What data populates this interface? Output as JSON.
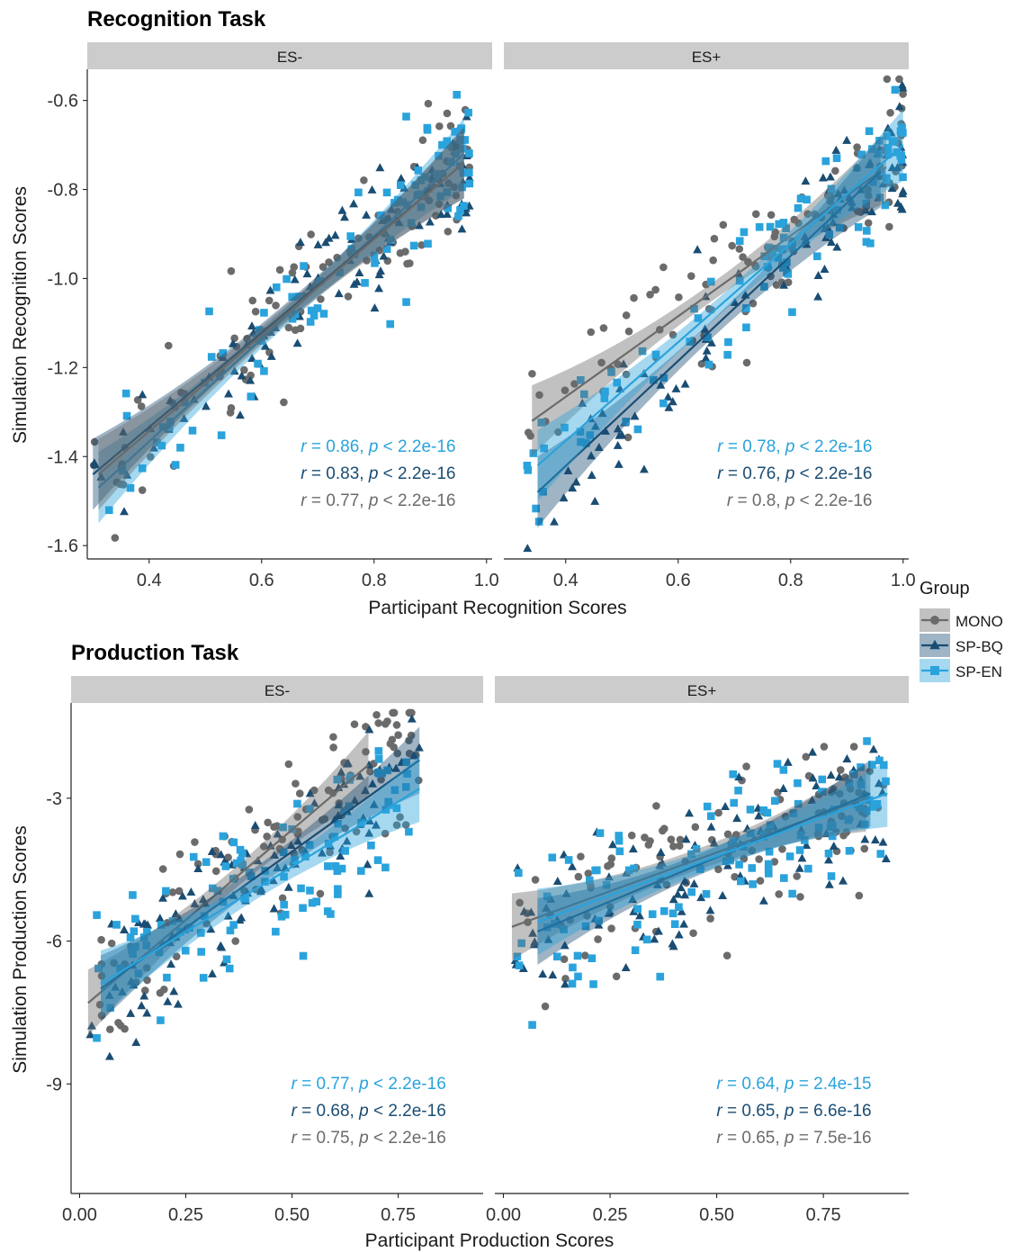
{
  "colors": {
    "MONO": "#6b6b6b",
    "SP-BQ": "#1a4d73",
    "SP-EN": "#2aa3dc",
    "strip": "#cccccc"
  },
  "legend": {
    "title": "Group",
    "entries": [
      {
        "group": "MONO",
        "label": "MONO",
        "shape": "circle"
      },
      {
        "group": "SP-BQ",
        "label": "SP-BQ",
        "shape": "triangle"
      },
      {
        "group": "SP-EN",
        "label": "SP-EN",
        "shape": "square"
      }
    ]
  },
  "chart_data": [
    {
      "type": "scatter",
      "title": "Recognition Task",
      "xlabel": "Participant Recognition Scores",
      "ylabel": "Simulation Recognition Scores",
      "xlim": [
        0.29,
        1.01
      ],
      "ylim": [
        -1.63,
        -0.53
      ],
      "xticks": [
        0.4,
        0.6,
        0.8,
        1.0
      ],
      "xtick_labels": [
        "0.4",
        "0.6",
        "0.8",
        "1.0"
      ],
      "yticks": [
        -1.6,
        -1.4,
        -1.2,
        -1.0,
        -0.8,
        -0.6
      ],
      "ytick_labels": [
        "-1.6",
        "-1.4",
        "-1.2",
        "-1.0",
        "-0.8",
        "-0.6"
      ],
      "grid": false,
      "facets": [
        {
          "label": "ES-",
          "xrange": [
            0.3,
            0.97
          ],
          "points_per_group": 100,
          "fits": [
            {
              "group": "SP-EN",
              "x": [
                0.31,
                0.96
              ],
              "y": [
                -1.47,
                -0.72
              ]
            },
            {
              "group": "SP-BQ",
              "x": [
                0.3,
                0.96
              ],
              "y": [
                -1.44,
                -0.74
              ]
            },
            {
              "group": "MONO",
              "x": [
                0.31,
                0.96
              ],
              "y": [
                -1.44,
                -0.74
              ]
            }
          ],
          "annotations": [
            {
              "group": "SP-EN",
              "r": "0.86",
              "p": "< 2.2e-16"
            },
            {
              "group": "SP-BQ",
              "r": "0.83",
              "p": "< 2.2e-16"
            },
            {
              "group": "MONO",
              "r": "0.77",
              "p": "< 2.2e-16"
            }
          ]
        },
        {
          "label": "ES+",
          "xrange": [
            0.33,
            1.0
          ],
          "points_per_group": 100,
          "fits": [
            {
              "group": "MONO",
              "x": [
                0.34,
                0.97
              ],
              "y": [
                -1.32,
                -0.75
              ]
            },
            {
              "group": "SP-BQ",
              "x": [
                0.35,
                0.96
              ],
              "y": [
                -1.48,
                -0.76
              ]
            },
            {
              "group": "SP-EN",
              "x": [
                0.35,
                1.0
              ],
              "y": [
                -1.42,
                -0.7
              ]
            }
          ],
          "annotations": [
            {
              "group": "SP-EN",
              "r": "0.78",
              "p": "< 2.2e-16"
            },
            {
              "group": "SP-BQ",
              "r": "0.76",
              "p": "< 2.2e-16"
            },
            {
              "group": "MONO",
              "r": "0.8",
              "p": "< 2.2e-16"
            }
          ]
        }
      ]
    },
    {
      "type": "scatter",
      "title": "Production Task",
      "xlabel": "Participant Production Scores",
      "ylabel": "Simulation Production Scores",
      "xlim": [
        -0.02,
        0.95
      ],
      "ylim": [
        -11.3,
        -1.0
      ],
      "xticks": [
        0.0,
        0.25,
        0.5,
        0.75
      ],
      "xtick_labels": [
        "0.00",
        "0.25",
        "0.50",
        "0.75"
      ],
      "yticks": [
        -9,
        -6,
        -3
      ],
      "ytick_labels": [
        "-9",
        "-6",
        "-3"
      ],
      "grid": false,
      "facets": [
        {
          "label": "ES-",
          "xrange": [
            0.02,
            0.8
          ],
          "points_per_group": 110,
          "fits": [
            {
              "group": "MONO",
              "x": [
                0.02,
                0.68
              ],
              "y": [
                -7.3,
                -2.3
              ]
            },
            {
              "group": "SP-BQ",
              "x": [
                0.05,
                0.8
              ],
              "y": [
                -7.0,
                -2.2
              ]
            },
            {
              "group": "SP-EN",
              "x": [
                0.05,
                0.8
              ],
              "y": [
                -6.9,
                -2.8
              ]
            }
          ],
          "annotations": [
            {
              "group": "SP-EN",
              "r": "0.77",
              "p": "< 2.2e-16"
            },
            {
              "group": "SP-BQ",
              "r": "0.68",
              "p": "< 2.2e-16"
            },
            {
              "group": "MONO",
              "r": "0.75",
              "p": "< 2.2e-16"
            }
          ]
        },
        {
          "label": "ES+",
          "xrange": [
            0.02,
            0.9
          ],
          "points_per_group": 110,
          "fits": [
            {
              "group": "MONO",
              "x": [
                0.02,
                0.85
              ],
              "y": [
                -5.7,
                -3.0
              ]
            },
            {
              "group": "SP-BQ",
              "x": [
                0.08,
                0.86
              ],
              "y": [
                -5.8,
                -2.9
              ]
            },
            {
              "group": "SP-EN",
              "x": [
                0.08,
                0.9
              ],
              "y": [
                -5.6,
                -2.9
              ]
            }
          ],
          "annotations": [
            {
              "group": "SP-EN",
              "r": "0.64",
              "p": "= 2.4e-15"
            },
            {
              "group": "SP-BQ",
              "r": "0.65",
              "p": "= 6.6e-16"
            },
            {
              "group": "MONO",
              "r": "0.65",
              "p": "= 7.5e-16"
            }
          ]
        }
      ]
    }
  ]
}
